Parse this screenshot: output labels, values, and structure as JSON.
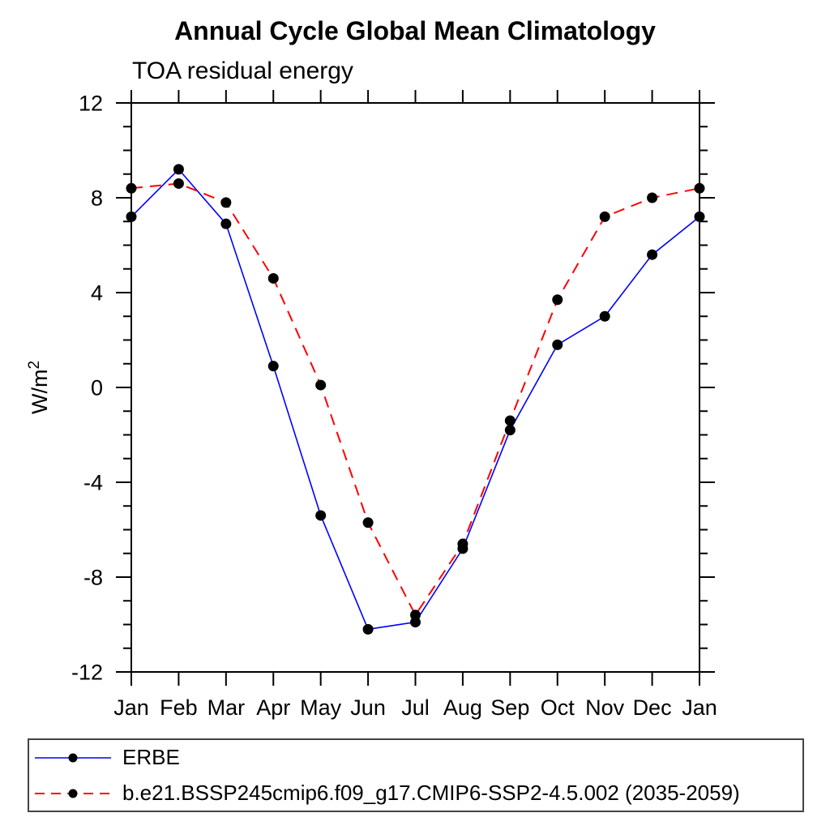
{
  "header": {
    "title": "Annual Cycle Global Mean Climatology",
    "subtitle": "TOA residual energy"
  },
  "chart_data": {
    "type": "line",
    "title": "Annual Cycle Global Mean Climatology",
    "subtitle": "TOA residual energy",
    "ylabel": "W/m^2",
    "ylabel_base": "W/m",
    "ylabel_exponent": "2",
    "x_tick_labels": [
      "Jan",
      "Feb",
      "Mar",
      "Apr",
      "May",
      "Jun",
      "Jul",
      "Aug",
      "Sep",
      "Oct",
      "Nov",
      "Dec",
      "Jan"
    ],
    "ylim": [
      -12,
      12
    ],
    "y_major_step": 4,
    "y_minor_step": 1,
    "y_major_tick_labels": [
      "12",
      "8",
      "4",
      "0",
      "-4",
      "-8",
      "-12"
    ],
    "grid": false,
    "legend_position": "bottom-left-box",
    "axis_color": "#000000",
    "marker_color": "#000000",
    "series": [
      {
        "name": "ERBE",
        "color": "#0000ff",
        "line_style": "solid",
        "marker": "filled-circle",
        "values": [
          7.2,
          9.2,
          6.9,
          0.9,
          -5.4,
          -10.2,
          -9.9,
          -6.8,
          -1.8,
          1.8,
          3.0,
          5.6,
          7.2
        ]
      },
      {
        "name": "b.e21.BSSP245cmip6.f09_g17.CMIP6-SSP2-4.5.002 (2035-2059)",
        "color": "#ff0000",
        "line_style": "dashed",
        "marker": "filled-circle",
        "values": [
          8.4,
          8.6,
          7.8,
          4.6,
          0.1,
          -5.7,
          -9.6,
          -6.6,
          -1.4,
          3.7,
          7.2,
          8.0,
          8.4
        ]
      }
    ]
  }
}
